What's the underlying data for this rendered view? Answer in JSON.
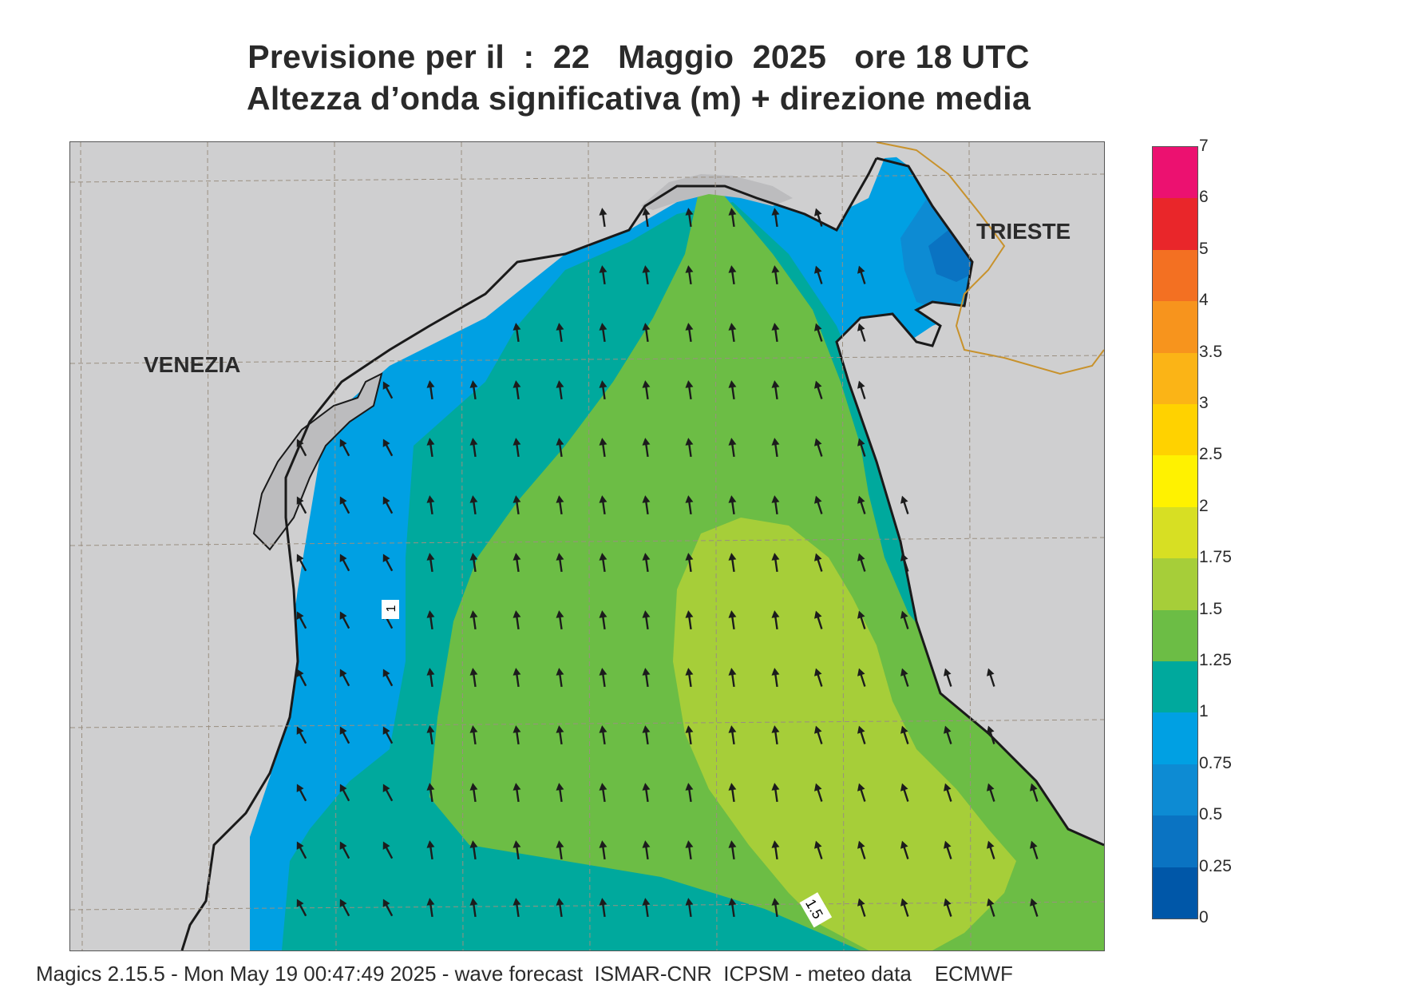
{
  "header": {
    "title_line1": "Previsione per il  :  22   Maggio  2025   ore 18 UTC",
    "title_line2": "Altezza d’onda significativa (m) + direzione media"
  },
  "map": {
    "cities": {
      "venezia": "VENEZIA",
      "trieste": "TRIESTE"
    },
    "contour_labels": [
      "1",
      "1.5"
    ],
    "colors": {
      "land": "#cfcfd0",
      "coast": "#1a1a1a",
      "border": "#c8922c",
      "grid": "#9a8f80",
      "arrow": "#1c1c1c"
    }
  },
  "legend": {
    "labels": [
      "7",
      "6",
      "5",
      "4",
      "3.5",
      "3",
      "2.5",
      "2",
      "1.75",
      "1.5",
      "1.25",
      "1",
      "0.75",
      "0.5",
      "0.25",
      "0"
    ],
    "colors": [
      "#ec1170",
      "#e9262a",
      "#f37022",
      "#f7941d",
      "#fbb416",
      "#ffd200",
      "#fff200",
      "#d7df23",
      "#a6ce39",
      "#6cbd45",
      "#00a99d",
      "#00a0e3",
      "#0d8bd3",
      "#0a73c2",
      "#0057a8"
    ],
    "unit": "m"
  },
  "footer": {
    "text": "Magics 2.15.5 - Mon May 19 00:47:49 2025 - wave forecast  ISMAR-CNR  ICPSM - meteo data    ECMWF"
  }
}
